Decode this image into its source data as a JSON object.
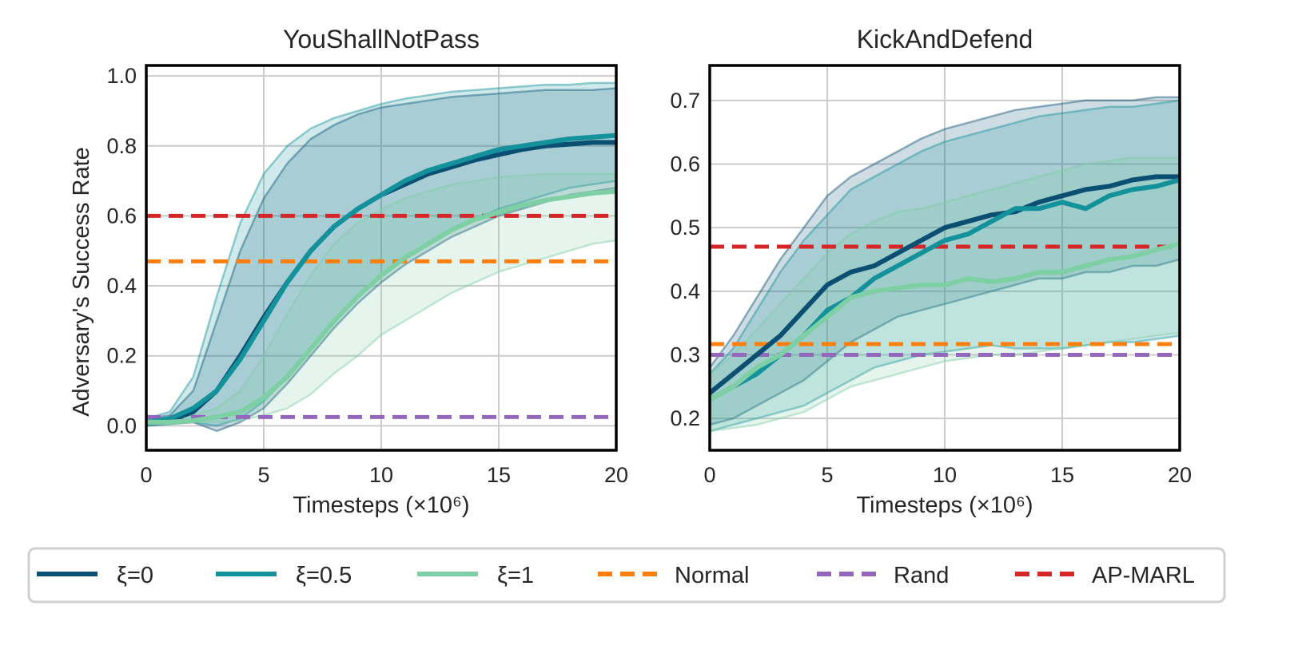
{
  "chart_data": [
    {
      "type": "line",
      "title": "YouShallNotPass",
      "xlabel": "Timesteps (×10⁶)",
      "ylabel": "Adversary's Success Rate",
      "xlim": [
        0,
        20
      ],
      "ylim": [
        -0.07,
        1.03
      ],
      "xticks": [
        0,
        5,
        10,
        15,
        20
      ],
      "xtick_labels": [
        "0",
        "5",
        "10",
        "15",
        "20"
      ],
      "yticks": [
        0.0,
        0.2,
        0.4,
        0.6,
        0.8,
        1.0
      ],
      "ytick_labels": [
        "0.0",
        "0.2",
        "0.4",
        "0.6",
        "0.8",
        "1.0"
      ],
      "grid": true,
      "series": [
        {
          "name": "ξ=0",
          "color": "#0b4f73",
          "x": [
            0,
            1,
            2,
            3,
            4,
            5,
            6,
            7,
            8,
            9,
            10,
            11,
            12,
            13,
            14,
            15,
            16,
            17,
            18,
            19,
            20
          ],
          "y": [
            0.01,
            0.015,
            0.04,
            0.1,
            0.2,
            0.31,
            0.41,
            0.5,
            0.57,
            0.62,
            0.66,
            0.69,
            0.72,
            0.74,
            0.76,
            0.775,
            0.79,
            0.8,
            0.805,
            0.81,
            0.81
          ],
          "upper": [
            0.02,
            0.03,
            0.1,
            0.3,
            0.5,
            0.65,
            0.75,
            0.82,
            0.86,
            0.89,
            0.91,
            0.92,
            0.93,
            0.94,
            0.945,
            0.95,
            0.955,
            0.96,
            0.96,
            0.96,
            0.965
          ],
          "lower": [
            0.0,
            0.005,
            0.01,
            -0.015,
            0.01,
            0.05,
            0.12,
            0.2,
            0.28,
            0.35,
            0.41,
            0.46,
            0.5,
            0.54,
            0.57,
            0.6,
            0.62,
            0.64,
            0.66,
            0.67,
            0.68
          ]
        },
        {
          "name": "ξ=0.5",
          "color": "#14929b",
          "x": [
            0,
            1,
            2,
            3,
            4,
            5,
            6,
            7,
            8,
            9,
            10,
            11,
            12,
            13,
            14,
            15,
            16,
            17,
            18,
            19,
            20
          ],
          "y": [
            0.01,
            0.02,
            0.05,
            0.1,
            0.19,
            0.3,
            0.41,
            0.5,
            0.57,
            0.62,
            0.66,
            0.7,
            0.73,
            0.75,
            0.77,
            0.79,
            0.8,
            0.81,
            0.82,
            0.825,
            0.83
          ],
          "upper": [
            0.02,
            0.04,
            0.14,
            0.37,
            0.58,
            0.72,
            0.8,
            0.85,
            0.88,
            0.9,
            0.92,
            0.935,
            0.945,
            0.955,
            0.96,
            0.965,
            0.97,
            0.975,
            0.975,
            0.98,
            0.98
          ],
          "lower": [
            0.0,
            0.005,
            0.01,
            0.0,
            0.02,
            0.07,
            0.14,
            0.22,
            0.3,
            0.37,
            0.43,
            0.48,
            0.52,
            0.56,
            0.59,
            0.62,
            0.64,
            0.66,
            0.68,
            0.69,
            0.7
          ]
        },
        {
          "name": "ξ=1",
          "color": "#7ecfa4",
          "x": [
            0,
            1,
            2,
            3,
            4,
            5,
            6,
            7,
            8,
            9,
            10,
            11,
            12,
            13,
            14,
            15,
            16,
            17,
            18,
            19,
            20
          ],
          "y": [
            0.01,
            0.01,
            0.015,
            0.025,
            0.04,
            0.08,
            0.14,
            0.22,
            0.3,
            0.37,
            0.43,
            0.48,
            0.52,
            0.56,
            0.59,
            0.61,
            0.63,
            0.645,
            0.655,
            0.665,
            0.67
          ],
          "upper": [
            0.015,
            0.02,
            0.03,
            0.05,
            0.1,
            0.2,
            0.32,
            0.43,
            0.52,
            0.58,
            0.62,
            0.65,
            0.67,
            0.69,
            0.7,
            0.71,
            0.715,
            0.72,
            0.72,
            0.72,
            0.72
          ],
          "lower": [
            0.005,
            0.005,
            0.01,
            0.01,
            0.015,
            0.03,
            0.05,
            0.09,
            0.15,
            0.2,
            0.26,
            0.3,
            0.34,
            0.38,
            0.41,
            0.44,
            0.46,
            0.48,
            0.5,
            0.52,
            0.53
          ]
        }
      ],
      "baselines": [
        {
          "name": "Normal",
          "color": "#ff7f0e",
          "value": 0.47
        },
        {
          "name": "Rand",
          "color": "#9467bd",
          "value": 0.025
        },
        {
          "name": "AP-MARL",
          "color": "#d62728",
          "value": 0.6
        }
      ]
    },
    {
      "type": "line",
      "title": "KickAndDefend",
      "xlabel": "Timesteps (×10⁶)",
      "ylabel": "",
      "xlim": [
        0,
        20
      ],
      "ylim": [
        0.15,
        0.755
      ],
      "xticks": [
        0,
        5,
        10,
        15,
        20
      ],
      "xtick_labels": [
        "0",
        "5",
        "10",
        "15",
        "20"
      ],
      "yticks": [
        0.2,
        0.3,
        0.4,
        0.5,
        0.6,
        0.7
      ],
      "ytick_labels": [
        "0.2",
        "0.3",
        "0.4",
        "0.5",
        "0.6",
        "0.7"
      ],
      "grid": true,
      "series": [
        {
          "name": "ξ=0",
          "color": "#0b4f73",
          "x": [
            0,
            1,
            2,
            3,
            4,
            5,
            6,
            7,
            8,
            9,
            10,
            11,
            12,
            13,
            14,
            15,
            16,
            17,
            18,
            19,
            20
          ],
          "y": [
            0.24,
            0.27,
            0.3,
            0.33,
            0.37,
            0.41,
            0.43,
            0.44,
            0.46,
            0.48,
            0.5,
            0.51,
            0.52,
            0.525,
            0.54,
            0.55,
            0.56,
            0.565,
            0.575,
            0.58,
            0.58
          ],
          "upper": [
            0.28,
            0.33,
            0.39,
            0.45,
            0.5,
            0.55,
            0.58,
            0.6,
            0.62,
            0.64,
            0.655,
            0.665,
            0.675,
            0.685,
            0.69,
            0.695,
            0.7,
            0.7,
            0.7,
            0.705,
            0.705
          ],
          "lower": [
            0.19,
            0.2,
            0.22,
            0.24,
            0.26,
            0.29,
            0.32,
            0.34,
            0.36,
            0.37,
            0.38,
            0.39,
            0.4,
            0.41,
            0.42,
            0.42,
            0.43,
            0.43,
            0.44,
            0.44,
            0.45
          ]
        },
        {
          "name": "ξ=0.5",
          "color": "#14929b",
          "x": [
            0,
            1,
            2,
            3,
            4,
            5,
            6,
            7,
            8,
            9,
            10,
            11,
            12,
            13,
            14,
            15,
            16,
            17,
            18,
            19,
            20
          ],
          "y": [
            0.23,
            0.25,
            0.27,
            0.3,
            0.33,
            0.37,
            0.39,
            0.42,
            0.44,
            0.46,
            0.48,
            0.49,
            0.51,
            0.53,
            0.53,
            0.54,
            0.53,
            0.55,
            0.56,
            0.565,
            0.575
          ],
          "upper": [
            0.27,
            0.31,
            0.37,
            0.43,
            0.48,
            0.52,
            0.56,
            0.58,
            0.6,
            0.62,
            0.635,
            0.645,
            0.655,
            0.665,
            0.675,
            0.68,
            0.685,
            0.69,
            0.69,
            0.695,
            0.7
          ],
          "lower": [
            0.18,
            0.19,
            0.2,
            0.21,
            0.22,
            0.24,
            0.26,
            0.28,
            0.29,
            0.3,
            0.305,
            0.31,
            0.315,
            0.31,
            0.31,
            0.31,
            0.315,
            0.32,
            0.32,
            0.325,
            0.33
          ]
        },
        {
          "name": "ξ=1",
          "color": "#7ecfa4",
          "x": [
            0,
            1,
            2,
            3,
            4,
            5,
            6,
            7,
            8,
            9,
            10,
            11,
            12,
            13,
            14,
            15,
            16,
            17,
            18,
            19,
            20
          ],
          "y": [
            0.23,
            0.25,
            0.28,
            0.3,
            0.33,
            0.36,
            0.39,
            0.4,
            0.405,
            0.41,
            0.41,
            0.42,
            0.415,
            0.42,
            0.43,
            0.43,
            0.44,
            0.45,
            0.455,
            0.465,
            0.475
          ],
          "upper": [
            0.27,
            0.3,
            0.34,
            0.38,
            0.42,
            0.46,
            0.49,
            0.51,
            0.525,
            0.53,
            0.54,
            0.55,
            0.56,
            0.57,
            0.58,
            0.59,
            0.6,
            0.605,
            0.61,
            0.61,
            0.61
          ],
          "lower": [
            0.18,
            0.185,
            0.19,
            0.2,
            0.21,
            0.23,
            0.25,
            0.26,
            0.27,
            0.28,
            0.29,
            0.295,
            0.3,
            0.3,
            0.305,
            0.31,
            0.315,
            0.32,
            0.325,
            0.33,
            0.335
          ]
        }
      ],
      "baselines": [
        {
          "name": "Normal",
          "color": "#ff7f0e",
          "value": 0.317
        },
        {
          "name": "Rand",
          "color": "#9467bd",
          "value": 0.3
        },
        {
          "name": "AP-MARL",
          "color": "#d62728",
          "value": 0.47
        }
      ]
    }
  ],
  "legend": {
    "placement": "bottom",
    "entries": [
      {
        "label": "ξ=0",
        "color": "#0b4f73",
        "style": "solid"
      },
      {
        "label": "ξ=0.5",
        "color": "#14929b",
        "style": "solid"
      },
      {
        "label": "ξ=1",
        "color": "#7ecfa4",
        "style": "solid"
      },
      {
        "label": "Normal",
        "color": "#ff7f0e",
        "style": "dashed"
      },
      {
        "label": "Rand",
        "color": "#9467bd",
        "style": "dashed"
      },
      {
        "label": "AP-MARL",
        "color": "#d62728",
        "style": "dashed"
      }
    ]
  }
}
